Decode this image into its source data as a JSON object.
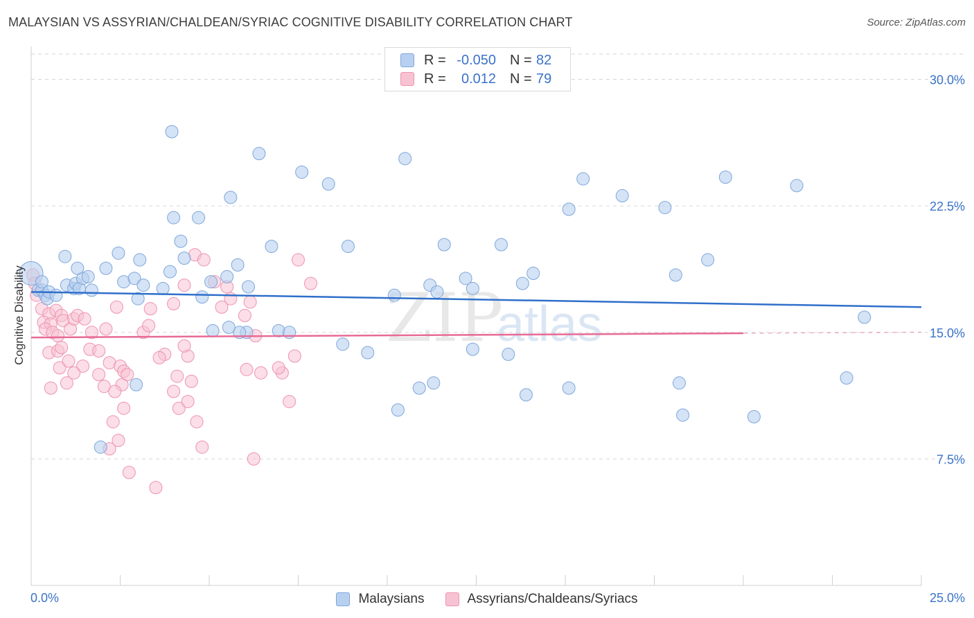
{
  "title": "MALAYSIAN VS ASSYRIAN/CHALDEAN/SYRIAC COGNITIVE DISABILITY CORRELATION CHART",
  "source": "Source: ZipAtlas.com",
  "watermark": {
    "zip": "ZIP",
    "atlas": "atlas"
  },
  "colors": {
    "blue_fill": "#b8d0ef",
    "blue_stroke": "#7ea6dc",
    "blue_line": "#2f6fca",
    "pink_fill": "#f7c3d3",
    "pink_stroke": "#ee92b0",
    "pink_line": "#e76a96",
    "value_text": "#3a73c8",
    "grid": "#d6d6d6"
  },
  "legend": {
    "rows": [
      {
        "r_label": "R =",
        "r_value": "-0.050",
        "n_label": "N =",
        "n_value": "82"
      },
      {
        "r_label": "R =",
        "r_value": "0.012",
        "n_label": "N =",
        "n_value": "79"
      }
    ]
  },
  "bottom_legend": [
    "Malaysians",
    "Assyrians/Chaldeans/Syriacs"
  ],
  "chart_data": {
    "type": "scatter",
    "title": "MALAYSIAN VS ASSYRIAN/CHALDEAN/SYRIAC COGNITIVE DISABILITY CORRELATION CHART",
    "xlabel": "",
    "ylabel": "Cognitive Disability",
    "xlim": [
      0,
      25
    ],
    "ylim": [
      0,
      31.5
    ],
    "x_tick_labels": [
      "0.0%",
      "25.0%"
    ],
    "y_ticks": [
      7.5,
      15.0,
      22.5,
      30.0
    ],
    "y_tick_labels": [
      "7.5%",
      "15.0%",
      "22.5%",
      "30.0%"
    ],
    "grid": true,
    "series": [
      {
        "name": "Malaysians",
        "r": -0.05,
        "n": 82,
        "trend": {
          "x0": 0,
          "y0": 17.4,
          "x1": 25,
          "y1": 16.5
        },
        "points": [
          [
            0.0,
            18.5
          ],
          [
            0.2,
            17.5
          ],
          [
            0.3,
            17.5
          ],
          [
            0.4,
            17.2
          ],
          [
            0.3,
            18.0
          ],
          [
            0.45,
            17.0
          ],
          [
            0.5,
            17.4
          ],
          [
            0.7,
            17.2
          ],
          [
            1.0,
            17.8
          ],
          [
            1.2,
            17.6
          ],
          [
            1.25,
            17.9
          ],
          [
            1.35,
            17.6
          ],
          [
            1.45,
            18.2
          ],
          [
            1.6,
            18.3
          ],
          [
            1.7,
            17.5
          ],
          [
            0.95,
            19.5
          ],
          [
            1.3,
            18.8
          ],
          [
            2.1,
            18.8
          ],
          [
            2.45,
            19.7
          ],
          [
            2.6,
            18.0
          ],
          [
            2.9,
            18.2
          ],
          [
            3.05,
            19.3
          ],
          [
            3.15,
            17.8
          ],
          [
            3.0,
            17.0
          ],
          [
            3.7,
            17.6
          ],
          [
            3.9,
            18.6
          ],
          [
            4.3,
            19.4
          ],
          [
            4.8,
            17.1
          ],
          [
            5.05,
            18.0
          ],
          [
            5.5,
            18.3
          ],
          [
            5.8,
            19.0
          ],
          [
            6.1,
            17.7
          ],
          [
            6.75,
            20.1
          ],
          [
            4.2,
            20.4
          ],
          [
            4.7,
            21.8
          ],
          [
            4.0,
            21.8
          ],
          [
            3.95,
            26.9
          ],
          [
            5.6,
            23.0
          ],
          [
            6.4,
            25.6
          ],
          [
            7.6,
            24.5
          ],
          [
            8.35,
            23.8
          ],
          [
            8.9,
            20.1
          ],
          [
            10.5,
            25.3
          ],
          [
            11.6,
            20.2
          ],
          [
            13.2,
            20.2
          ],
          [
            12.2,
            18.2
          ],
          [
            11.2,
            17.8
          ],
          [
            10.2,
            17.2
          ],
          [
            11.4,
            17.4
          ],
          [
            12.4,
            17.6
          ],
          [
            13.8,
            17.9
          ],
          [
            14.1,
            18.5
          ],
          [
            15.1,
            22.3
          ],
          [
            15.5,
            24.1
          ],
          [
            16.6,
            23.1
          ],
          [
            17.8,
            22.4
          ],
          [
            18.1,
            18.4
          ],
          [
            19.0,
            19.3
          ],
          [
            19.5,
            24.2
          ],
          [
            21.5,
            23.7
          ],
          [
            23.4,
            15.9
          ],
          [
            22.9,
            12.3
          ],
          [
            20.3,
            10.0
          ],
          [
            18.3,
            10.1
          ],
          [
            18.2,
            12.0
          ],
          [
            15.1,
            11.7
          ],
          [
            13.4,
            13.7
          ],
          [
            13.9,
            11.3
          ],
          [
            12.4,
            14.0
          ],
          [
            11.3,
            12.0
          ],
          [
            10.9,
            11.7
          ],
          [
            10.3,
            10.4
          ],
          [
            9.45,
            13.8
          ],
          [
            8.75,
            14.3
          ],
          [
            6.95,
            15.1
          ],
          [
            7.25,
            15.0
          ],
          [
            6.05,
            15.0
          ],
          [
            5.85,
            15.0
          ],
          [
            5.1,
            15.1
          ],
          [
            5.55,
            15.3
          ],
          [
            2.95,
            11.9
          ],
          [
            1.95,
            8.2
          ]
        ]
      },
      {
        "name": "Assyrians/Chaldeans/Syriacs",
        "r": 0.012,
        "n": 79,
        "trend": {
          "x0": 0,
          "y0": 14.7,
          "x1": 20,
          "y1": 14.95,
          "dashed_to": 25
        },
        "points": [
          [
            0.05,
            18.4
          ],
          [
            0.1,
            17.9
          ],
          [
            0.15,
            17.2
          ],
          [
            0.3,
            16.4
          ],
          [
            0.5,
            16.1
          ],
          [
            0.35,
            15.6
          ],
          [
            0.55,
            15.5
          ],
          [
            0.7,
            16.3
          ],
          [
            0.85,
            16.0
          ],
          [
            0.4,
            15.2
          ],
          [
            0.6,
            15.0
          ],
          [
            0.75,
            14.8
          ],
          [
            0.9,
            15.7
          ],
          [
            1.1,
            15.2
          ],
          [
            1.2,
            15.8
          ],
          [
            1.3,
            16.0
          ],
          [
            1.5,
            15.8
          ],
          [
            1.7,
            15.0
          ],
          [
            2.1,
            15.2
          ],
          [
            2.4,
            16.5
          ],
          [
            1.65,
            14.0
          ],
          [
            1.9,
            13.9
          ],
          [
            2.2,
            13.2
          ],
          [
            1.45,
            13.0
          ],
          [
            1.9,
            12.5
          ],
          [
            2.05,
            11.8
          ],
          [
            1.2,
            12.6
          ],
          [
            1.0,
            12.0
          ],
          [
            0.8,
            12.9
          ],
          [
            1.05,
            13.3
          ],
          [
            0.5,
            13.8
          ],
          [
            0.75,
            13.9
          ],
          [
            0.85,
            14.1
          ],
          [
            0.55,
            11.7
          ],
          [
            2.5,
            13.0
          ],
          [
            2.6,
            12.7
          ],
          [
            2.7,
            12.5
          ],
          [
            2.55,
            11.9
          ],
          [
            2.35,
            11.5
          ],
          [
            2.6,
            10.5
          ],
          [
            2.3,
            9.7
          ],
          [
            2.2,
            8.1
          ],
          [
            2.45,
            8.6
          ],
          [
            2.75,
            6.7
          ],
          [
            3.5,
            5.8
          ],
          [
            3.75,
            13.7
          ],
          [
            4.1,
            12.4
          ],
          [
            4.0,
            11.5
          ],
          [
            4.15,
            10.5
          ],
          [
            4.4,
            10.9
          ],
          [
            4.4,
            13.6
          ],
          [
            4.5,
            12.1
          ],
          [
            4.3,
            14.2
          ],
          [
            4.65,
            9.7
          ],
          [
            4.8,
            8.2
          ],
          [
            3.6,
            13.5
          ],
          [
            3.15,
            15.0
          ],
          [
            3.3,
            15.4
          ],
          [
            3.35,
            16.4
          ],
          [
            4.0,
            16.7
          ],
          [
            4.3,
            17.8
          ],
          [
            4.6,
            19.6
          ],
          [
            4.85,
            19.3
          ],
          [
            5.15,
            18.0
          ],
          [
            5.5,
            17.7
          ],
          [
            5.6,
            17.0
          ],
          [
            5.35,
            16.5
          ],
          [
            6.0,
            16.0
          ],
          [
            6.15,
            16.8
          ],
          [
            6.3,
            14.8
          ],
          [
            6.05,
            12.8
          ],
          [
            6.45,
            12.6
          ],
          [
            7.05,
            12.6
          ],
          [
            6.95,
            12.9
          ],
          [
            7.4,
            13.6
          ],
          [
            7.25,
            10.9
          ],
          [
            6.25,
            7.5
          ],
          [
            7.5,
            19.3
          ],
          [
            7.85,
            17.9
          ]
        ]
      }
    ]
  }
}
